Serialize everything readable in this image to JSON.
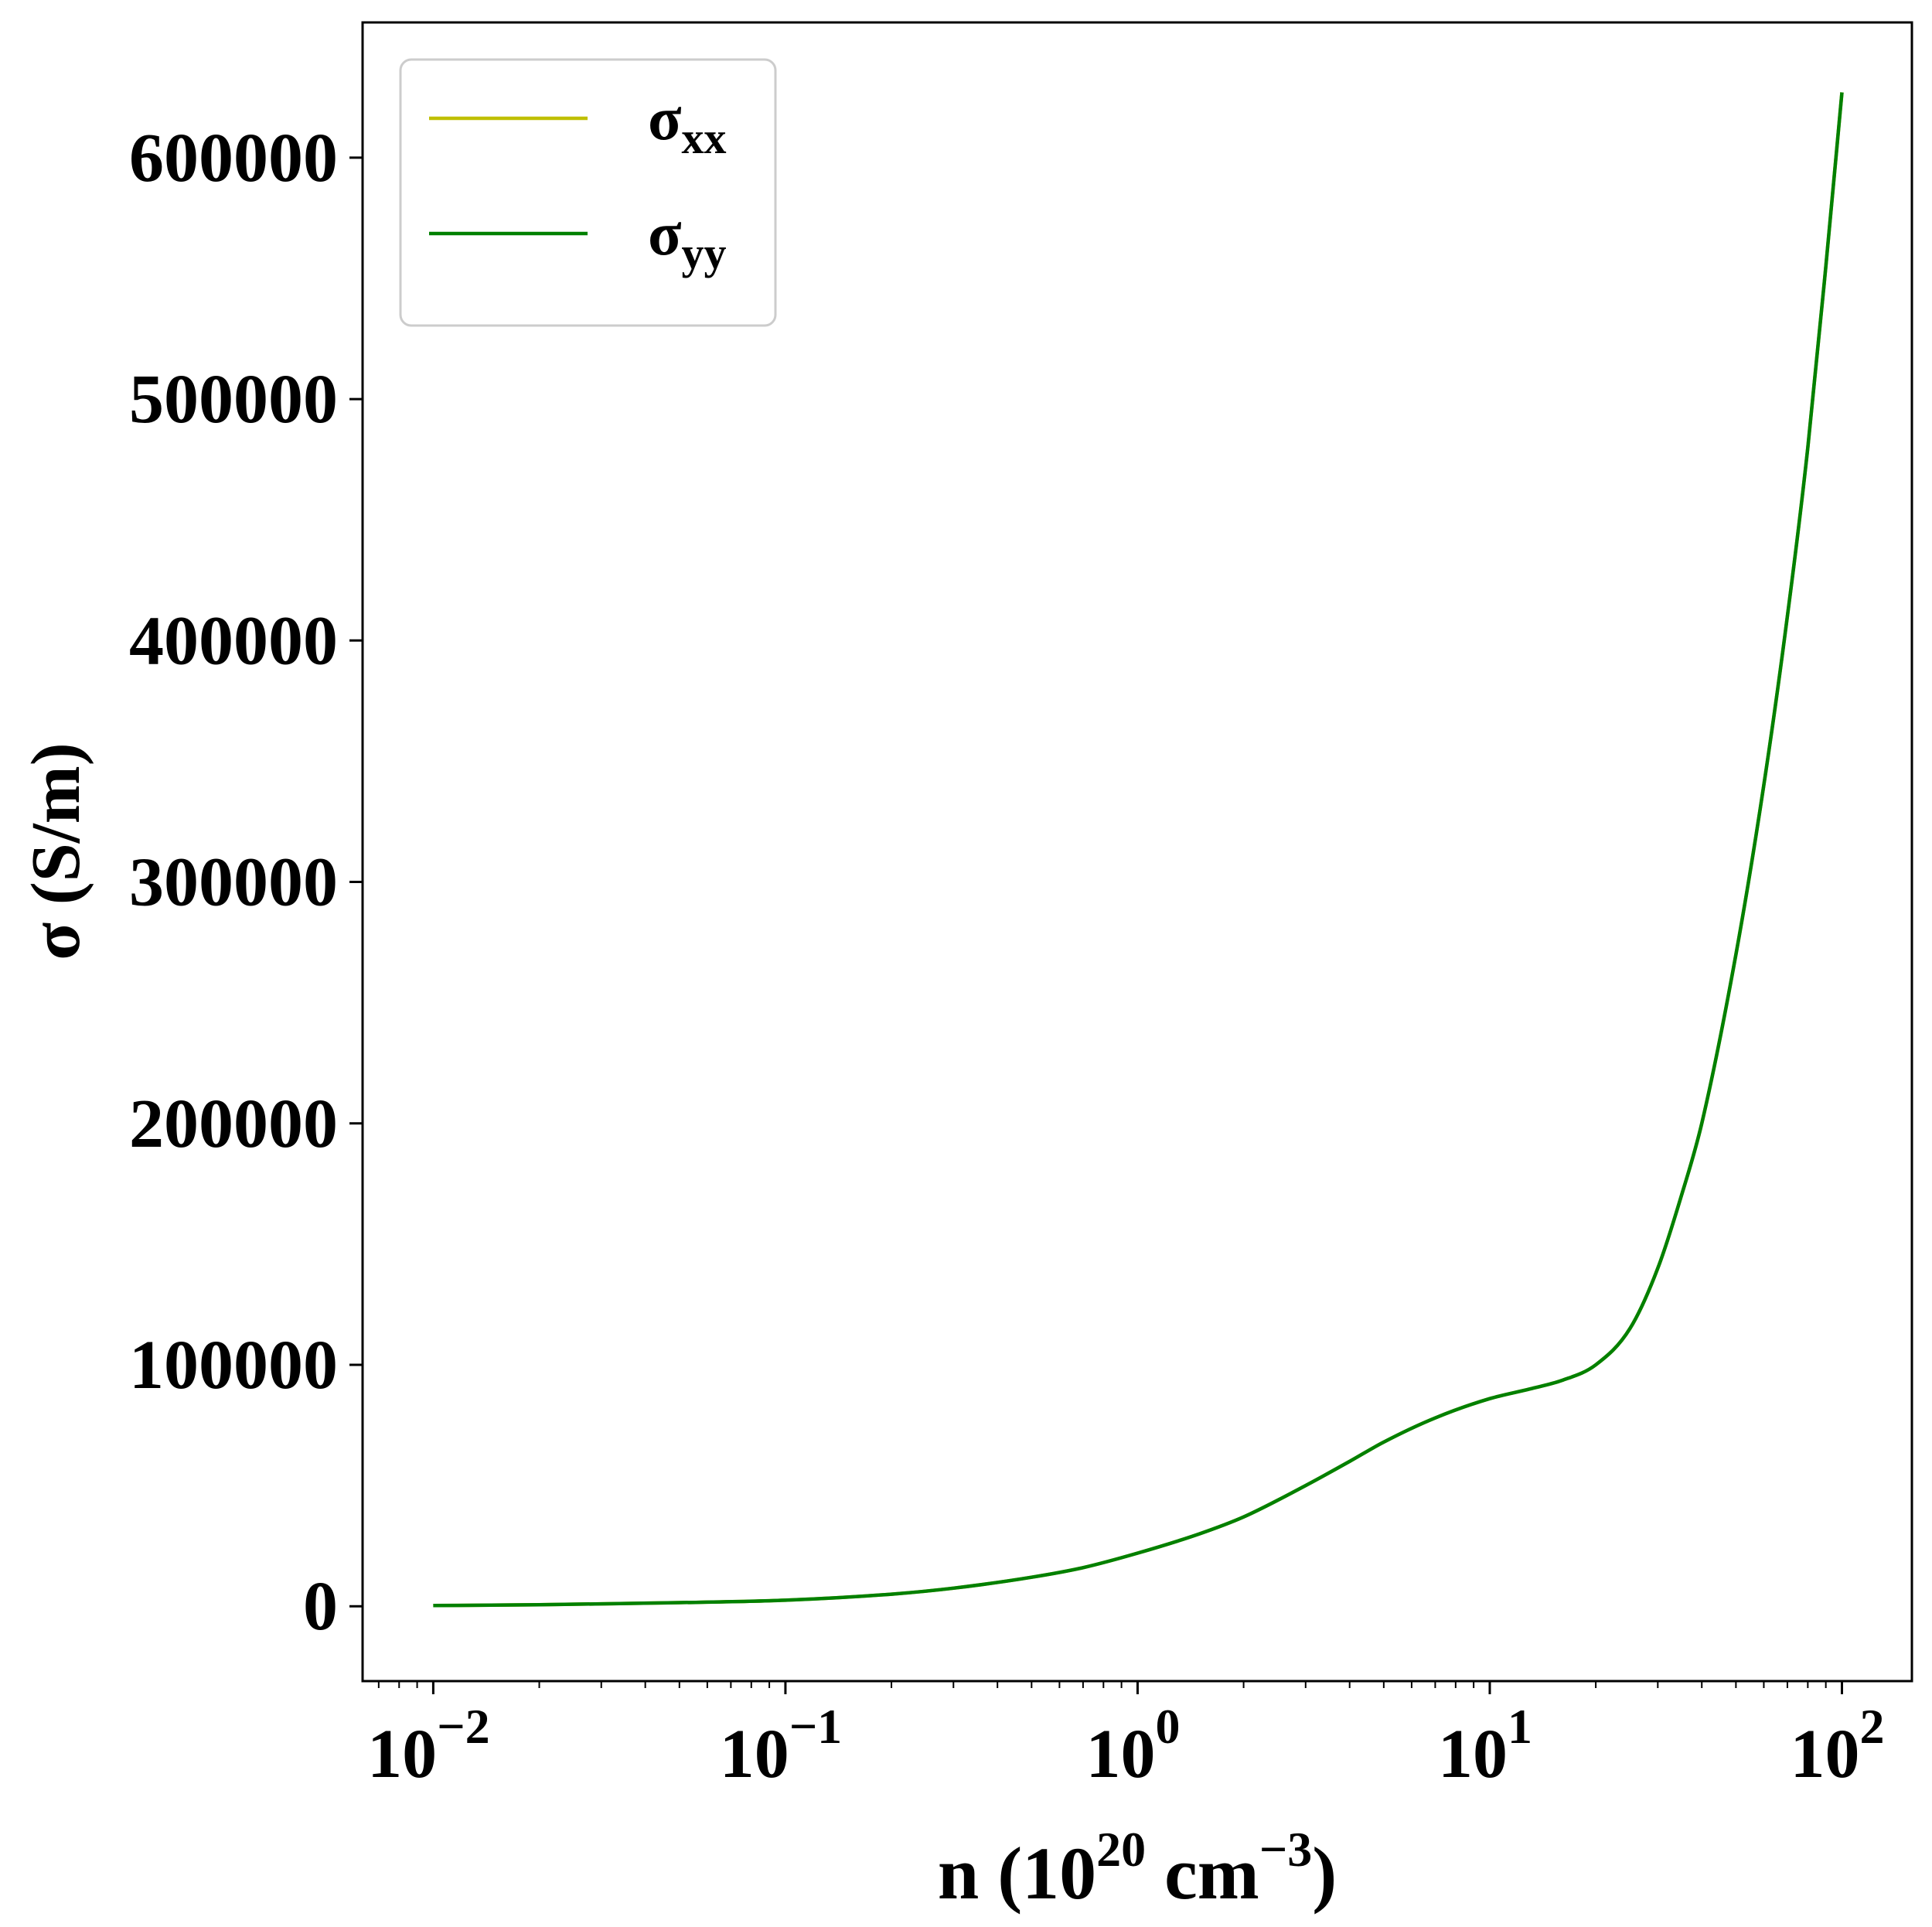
{
  "chart_data": {
    "type": "line",
    "xscale": "log",
    "xlabel": {
      "base": "n (10",
      "sup1": "20",
      "mid": " cm",
      "sup2": "−3",
      "end": ")"
    },
    "ylabel": "σ (S/m)",
    "xlim": [
      0.0063,
      158
    ],
    "ylim": [
      -31000,
      656000
    ],
    "grid": false,
    "legend_position": "top-left",
    "x_tick_values": [
      0.01,
      0.1,
      1,
      10,
      100
    ],
    "x_tick_labels": [
      {
        "base": "10",
        "exp": "−2"
      },
      {
        "base": "10",
        "exp": "−1"
      },
      {
        "base": "10",
        "exp": "0"
      },
      {
        "base": "10",
        "exp": "1"
      },
      {
        "base": "10",
        "exp": "2"
      }
    ],
    "y_tick_values": [
      0,
      100000,
      200000,
      300000,
      400000,
      500000,
      600000
    ],
    "y_tick_labels": [
      "0",
      "100000",
      "200000",
      "300000",
      "400000",
      "500000",
      "600000"
    ],
    "series": [
      {
        "name": {
          "base": "σ",
          "sub": "xx"
        },
        "color": "#bfbf00",
        "x": [
          0.01,
          0.02,
          0.05,
          0.1,
          0.2,
          0.3,
          0.5,
          0.7,
          1,
          1.5,
          2,
          3,
          4,
          5,
          7,
          10,
          13,
          16,
          20,
          25,
          30,
          35,
          40,
          50,
          60,
          70,
          80,
          90,
          100
        ],
        "y": [
          300,
          600,
          1500,
          2500,
          5000,
          7500,
          12000,
          16000,
          22000,
          30000,
          37000,
          50000,
          60000,
          68000,
          78000,
          86000,
          90000,
          93500,
          100000,
          115000,
          140000,
          170000,
          200000,
          270000,
          340000,
          410000,
          480000,
          555000,
          627000
        ]
      },
      {
        "name": {
          "base": "σ",
          "sub": "yy"
        },
        "color": "#008000",
        "x": [
          0.01,
          0.02,
          0.05,
          0.1,
          0.2,
          0.3,
          0.5,
          0.7,
          1,
          1.5,
          2,
          3,
          4,
          5,
          7,
          10,
          13,
          16,
          20,
          25,
          30,
          35,
          40,
          50,
          60,
          70,
          80,
          90,
          100
        ],
        "y": [
          300,
          600,
          1500,
          2500,
          5000,
          7500,
          12000,
          16000,
          22000,
          30000,
          37000,
          50000,
          60000,
          68000,
          78000,
          86000,
          90000,
          93500,
          100000,
          115000,
          140000,
          170000,
          200000,
          270000,
          340000,
          410000,
          480000,
          555000,
          627000
        ]
      }
    ]
  }
}
